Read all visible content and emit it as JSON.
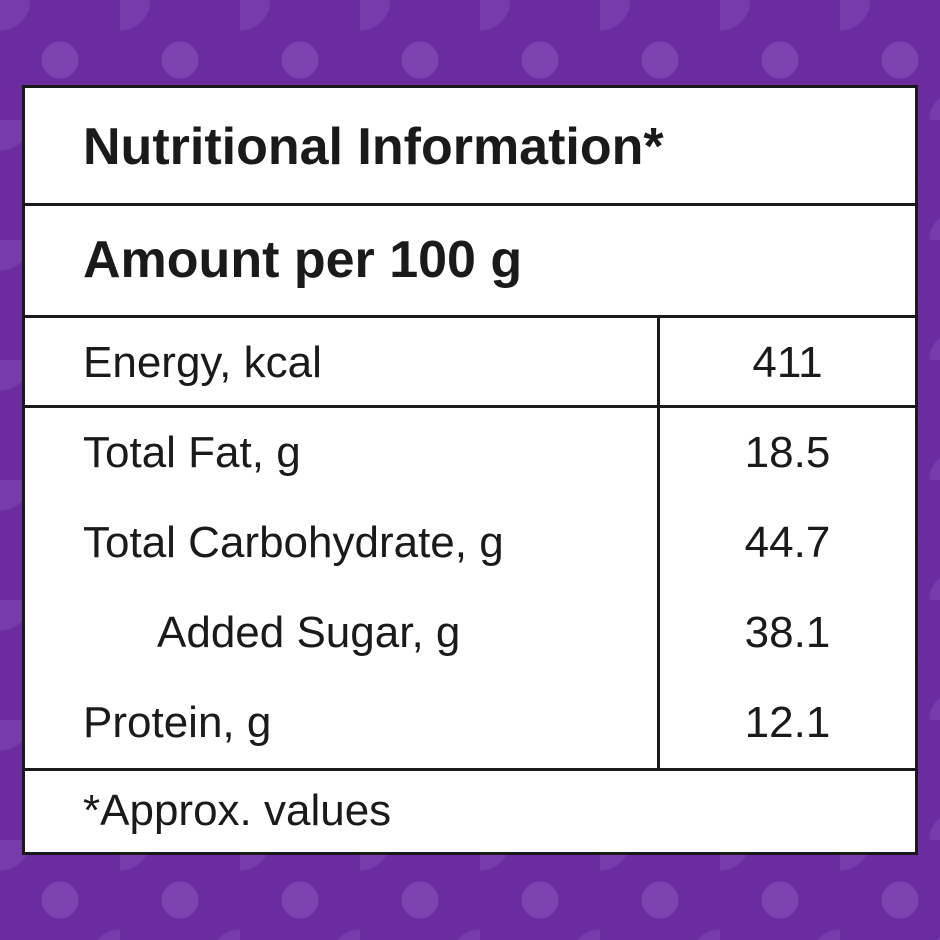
{
  "header": {
    "title": "Nutritional Information*",
    "subtitle": "Amount per 100 g"
  },
  "table": {
    "rows": [
      [
        "Energy, kcal",
        411
      ],
      [
        "Total Fat, g",
        18.5
      ],
      [
        "Total Carbohydrate, g",
        44.7
      ],
      [
        "Added Sugar, g",
        38.1
      ],
      [
        "Protein, g",
        12.1
      ]
    ]
  },
  "footnote": "*Approx. values"
}
